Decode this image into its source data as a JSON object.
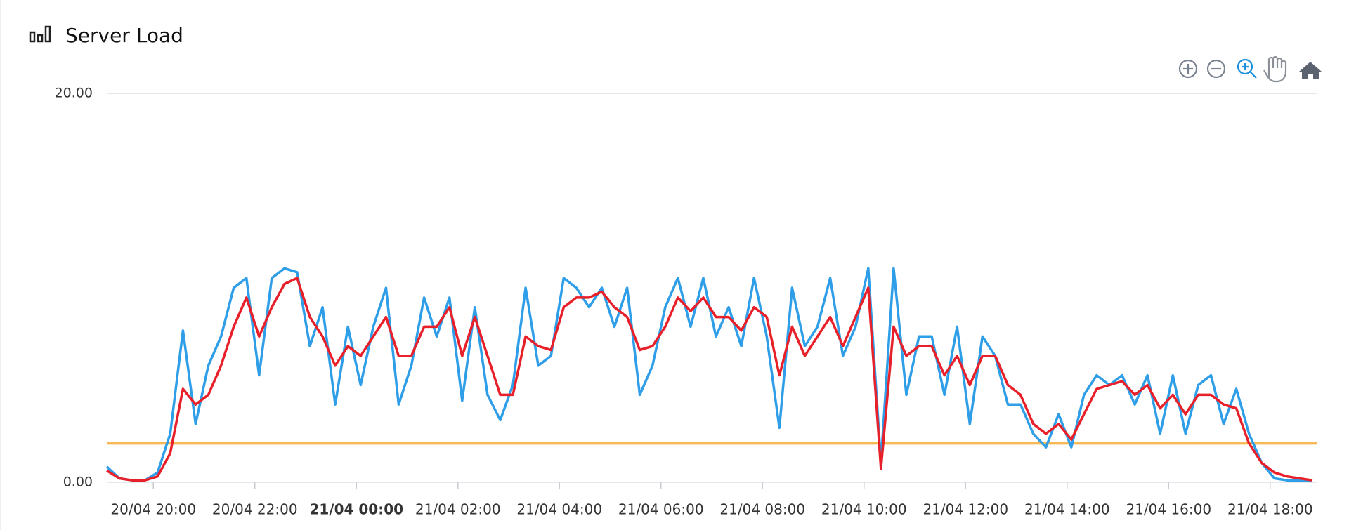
{
  "chart_data": {
    "type": "line",
    "title": "Server Load",
    "x": [
      "20/04 19:05",
      "20/04 19:20",
      "20/04 19:35",
      "20/04 19:50",
      "20/04 20:05",
      "20/04 20:20",
      "20/04 20:35",
      "20/04 20:50",
      "20/04 21:05",
      "20/04 21:20",
      "20/04 21:35",
      "20/04 21:50",
      "20/04 22:05",
      "20/04 22:20",
      "20/04 22:35",
      "20/04 22:50",
      "20/04 23:05",
      "20/04 23:20",
      "20/04 23:35",
      "20/04 23:50",
      "21/04 00:05",
      "21/04 00:20",
      "21/04 00:35",
      "21/04 00:50",
      "21/04 01:05",
      "21/04 01:20",
      "21/04 01:35",
      "21/04 01:50",
      "21/04 02:05",
      "21/04 02:20",
      "21/04 02:35",
      "21/04 02:50",
      "21/04 03:05",
      "21/04 03:20",
      "21/04 03:35",
      "21/04 03:50",
      "21/04 04:05",
      "21/04 04:20",
      "21/04 04:35",
      "21/04 04:50",
      "21/04 05:05",
      "21/04 05:20",
      "21/04 05:35",
      "21/04 05:50",
      "21/04 06:05",
      "21/04 06:20",
      "21/04 06:35",
      "21/04 06:50",
      "21/04 07:05",
      "21/04 07:20",
      "21/04 07:35",
      "21/04 07:50",
      "21/04 08:05",
      "21/04 08:20",
      "21/04 08:35",
      "21/04 08:50",
      "21/04 09:05",
      "21/04 09:20",
      "21/04 09:35",
      "21/04 09:50",
      "21/04 10:05",
      "21/04 10:20",
      "21/04 10:35",
      "21/04 10:50",
      "21/04 11:05",
      "21/04 11:20",
      "21/04 11:35",
      "21/04 11:50",
      "21/04 12:05",
      "21/04 12:20",
      "21/04 12:35",
      "21/04 12:50",
      "21/04 13:05",
      "21/04 13:20",
      "21/04 13:35",
      "21/04 13:50",
      "21/04 14:05",
      "21/04 14:20",
      "21/04 14:35",
      "21/04 14:50",
      "21/04 15:05",
      "21/04 15:20",
      "21/04 15:35",
      "21/04 15:50",
      "21/04 16:05",
      "21/04 16:20",
      "21/04 16:35",
      "21/04 16:50",
      "21/04 17:05",
      "21/04 17:20",
      "21/04 17:35",
      "21/04 17:50",
      "21/04 18:05",
      "21/04 18:20",
      "21/04 18:35",
      "21/04 18:50"
    ],
    "series": [
      {
        "color": "#2f9ee8",
        "values": [
          0.8,
          0.2,
          0.1,
          0.1,
          0.5,
          2.5,
          7.8,
          3.0,
          6.0,
          7.5,
          10.0,
          10.5,
          5.5,
          10.5,
          11.0,
          10.8,
          7.0,
          9.0,
          4.0,
          8.0,
          5.0,
          8.0,
          10.0,
          4.0,
          6.0,
          9.5,
          7.5,
          9.5,
          4.2,
          9.0,
          4.5,
          3.2,
          5.0,
          10.0,
          6.0,
          6.5,
          10.5,
          10.0,
          9.0,
          10.0,
          8.0,
          10.0,
          4.5,
          6.0,
          9.0,
          10.5,
          8.0,
          10.5,
          7.5,
          9.0,
          7.0,
          10.5,
          7.5,
          2.8,
          10.0,
          7.0,
          8.0,
          10.5,
          6.5,
          8.0,
          11.0,
          1.0,
          11.0,
          4.5,
          7.5,
          7.5,
          4.5,
          8.0,
          3.0,
          7.5,
          6.5,
          4.0,
          4.0,
          2.5,
          1.8,
          3.5,
          1.8,
          4.5,
          5.5,
          5.0,
          5.5,
          4.0,
          5.5,
          2.5,
          5.5,
          2.5,
          5.0,
          5.5,
          3.0,
          4.8,
          2.5,
          1.0,
          0.2,
          0.1,
          0.1,
          0.1
        ]
      },
      {
        "color": "#e8202a",
        "values": [
          0.6,
          0.2,
          0.1,
          0.1,
          0.3,
          1.5,
          4.8,
          4.0,
          4.5,
          6.0,
          8.0,
          9.5,
          7.5,
          9.0,
          10.2,
          10.5,
          8.5,
          7.5,
          6.0,
          7.0,
          6.5,
          7.5,
          8.5,
          6.5,
          6.5,
          8.0,
          8.0,
          9.0,
          6.5,
          8.5,
          6.5,
          4.5,
          4.5,
          7.5,
          7.0,
          6.8,
          9.0,
          9.5,
          9.5,
          9.8,
          9.0,
          8.5,
          6.8,
          7.0,
          8.0,
          9.5,
          8.8,
          9.5,
          8.5,
          8.5,
          7.8,
          9.0,
          8.5,
          5.5,
          8.0,
          6.5,
          7.5,
          8.5,
          7.0,
          8.5,
          10.0,
          0.7,
          8.0,
          6.5,
          7.0,
          7.0,
          5.5,
          6.5,
          5.0,
          6.5,
          6.5,
          5.0,
          4.5,
          3.0,
          2.5,
          3.0,
          2.2,
          3.5,
          4.8,
          5.0,
          5.2,
          4.5,
          5.0,
          3.8,
          4.5,
          3.5,
          4.5,
          4.5,
          4.0,
          3.8,
          2.0,
          1.0,
          0.5,
          0.3,
          0.2,
          0.1
        ]
      }
    ],
    "threshold": {
      "value": 2,
      "color": "#f7b955"
    },
    "xlim": [
      "20/04 19:05",
      "21/04 18:55"
    ],
    "xticks": [
      "20/04 20:00",
      "20/04 22:00",
      "21/04 00:00",
      "21/04 02:00",
      "21/04 04:00",
      "21/04 06:00",
      "21/04 08:00",
      "21/04 10:00",
      "21/04 12:00",
      "21/04 14:00",
      "21/04 16:00",
      "21/04 18:00"
    ],
    "ylim": [
      0,
      20
    ],
    "yticks": [
      {
        "value": 0,
        "label": "0.00"
      },
      {
        "value": 20,
        "label": "20.00"
      }
    ],
    "grid": true
  }
}
